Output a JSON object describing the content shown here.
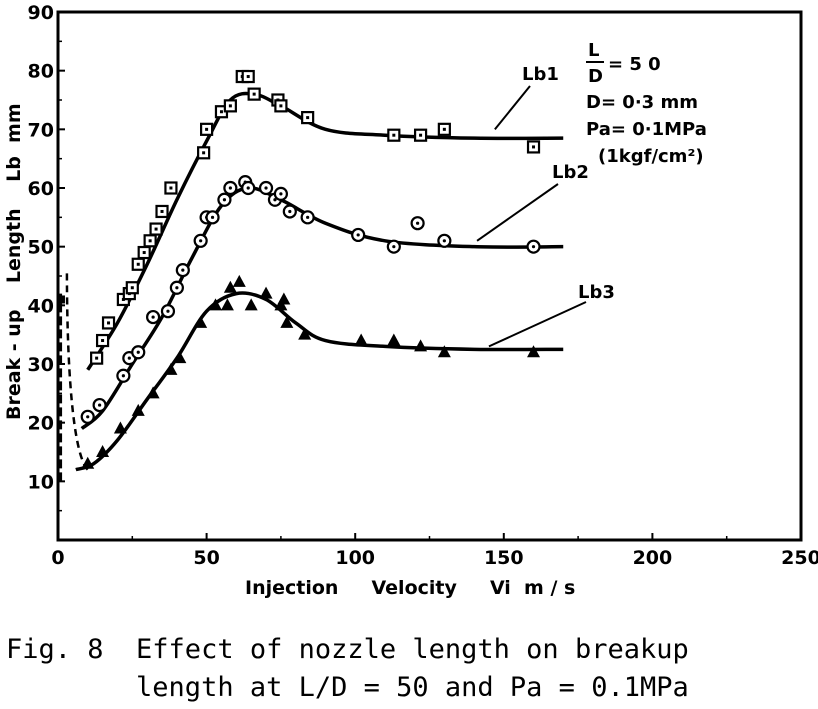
{
  "chart_data": {
    "type": "scatter",
    "x_ticks": [
      "0",
      "50",
      "100",
      "150",
      "200",
      "250"
    ],
    "y_ticks": [
      "10",
      "20",
      "30",
      "40",
      "50",
      "60",
      "70",
      "80",
      "90"
    ],
    "xlim": [
      0,
      250
    ],
    "ylim": [
      0,
      90
    ],
    "xlabel": "Injection     Velocity     Vi  m / s",
    "ylabel": "Break - up    Length    Lb  mm",
    "grid": false,
    "annotations": {
      "ld_num": "L",
      "ld_den": "D",
      "ld_val": "= 5 0",
      "d": "D= 0·3 mm",
      "pa": "Pa= 0·1MPa",
      "pa_alt": "(1kgf/cm²)"
    },
    "series": [
      {
        "name": "Lb1",
        "marker": "square",
        "points": [
          [
            13,
            31
          ],
          [
            15,
            34
          ],
          [
            17,
            37
          ],
          [
            22,
            41
          ],
          [
            24,
            42
          ],
          [
            25,
            43
          ],
          [
            27,
            47
          ],
          [
            29,
            49
          ],
          [
            31,
            51
          ],
          [
            33,
            53
          ],
          [
            35,
            56
          ],
          [
            38,
            60
          ],
          [
            49,
            66
          ],
          [
            50,
            70
          ],
          [
            55,
            73
          ],
          [
            58,
            74
          ],
          [
            62,
            79
          ],
          [
            64,
            79
          ],
          [
            66,
            76
          ],
          [
            74,
            75
          ],
          [
            75,
            74
          ],
          [
            84,
            72
          ],
          [
            113,
            69
          ],
          [
            122,
            69
          ],
          [
            130,
            70
          ],
          [
            160,
            67
          ]
        ],
        "curve": [
          [
            10,
            29
          ],
          [
            20,
            37
          ],
          [
            30,
            47
          ],
          [
            40,
            58
          ],
          [
            50,
            68
          ],
          [
            58,
            75
          ],
          [
            66,
            76
          ],
          [
            75,
            74
          ],
          [
            90,
            70
          ],
          [
            110,
            69
          ],
          [
            140,
            68.5
          ],
          [
            170,
            68.5
          ]
        ]
      },
      {
        "name": "Lb2",
        "marker": "circle",
        "points": [
          [
            10,
            21
          ],
          [
            14,
            23
          ],
          [
            22,
            28
          ],
          [
            24,
            31
          ],
          [
            27,
            32
          ],
          [
            32,
            38
          ],
          [
            37,
            39
          ],
          [
            40,
            43
          ],
          [
            42,
            46
          ],
          [
            48,
            51
          ],
          [
            50,
            55
          ],
          [
            52,
            55
          ],
          [
            56,
            58
          ],
          [
            58,
            60
          ],
          [
            63,
            61
          ],
          [
            64,
            60
          ],
          [
            70,
            60
          ],
          [
            73,
            58
          ],
          [
            75,
            59
          ],
          [
            78,
            56
          ],
          [
            84,
            55
          ],
          [
            101,
            52
          ],
          [
            113,
            50
          ],
          [
            121,
            54
          ],
          [
            130,
            51
          ],
          [
            160,
            50
          ]
        ],
        "curve": [
          [
            8,
            19
          ],
          [
            15,
            22
          ],
          [
            25,
            30
          ],
          [
            35,
            38
          ],
          [
            45,
            48
          ],
          [
            55,
            57
          ],
          [
            64,
            60
          ],
          [
            75,
            58
          ],
          [
            90,
            54
          ],
          [
            110,
            51
          ],
          [
            140,
            50
          ],
          [
            170,
            50
          ]
        ]
      },
      {
        "name": "Lb3",
        "marker": "triangle",
        "points": [
          [
            10,
            13
          ],
          [
            15,
            15
          ],
          [
            21,
            19
          ],
          [
            27,
            22
          ],
          [
            32,
            25
          ],
          [
            38,
            29
          ],
          [
            41,
            31
          ],
          [
            48,
            37
          ],
          [
            53,
            40
          ],
          [
            57,
            40
          ],
          [
            58,
            43
          ],
          [
            61,
            44
          ],
          [
            65,
            40
          ],
          [
            70,
            42
          ],
          [
            75,
            40
          ],
          [
            76,
            41
          ],
          [
            77,
            37
          ],
          [
            83,
            35
          ],
          [
            102,
            34
          ],
          [
            113,
            34
          ],
          [
            122,
            33
          ],
          [
            130,
            32
          ],
          [
            160,
            32
          ]
        ],
        "curve": [
          [
            6,
            12
          ],
          [
            12,
            13
          ],
          [
            20,
            17
          ],
          [
            30,
            24
          ],
          [
            40,
            31
          ],
          [
            50,
            39
          ],
          [
            60,
            42
          ],
          [
            70,
            41
          ],
          [
            80,
            37
          ],
          [
            90,
            34
          ],
          [
            110,
            33
          ],
          [
            140,
            32.5
          ],
          [
            170,
            32.5
          ]
        ]
      }
    ]
  },
  "caption": {
    "line1": "Fig. 8  Effect of nozzle length on breakup",
    "line2": "        length at L/D = 50 and Pa = 0.1MPa"
  }
}
